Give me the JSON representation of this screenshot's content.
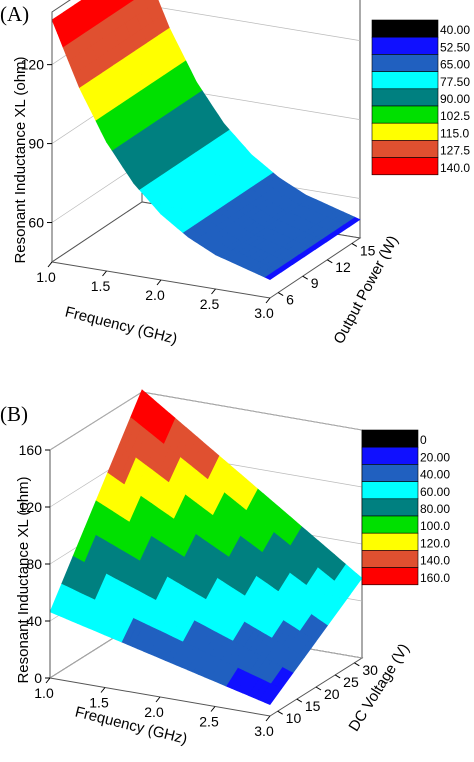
{
  "chart_data": [
    {
      "panel": "(A)",
      "type": "surface3d",
      "x_axis": {
        "label": "Frequency (GHz)",
        "range": [
          1.0,
          3.0
        ],
        "ticks": [
          "1.0",
          "1.5",
          "2.0",
          "2.5",
          "3.0"
        ]
      },
      "y_axis": {
        "label": "Output Power (W)",
        "range": [
          5,
          16
        ],
        "ticks": [
          "6",
          "9",
          "12",
          "15"
        ]
      },
      "z_axis": {
        "label": "Resonant Inductance XL (ohm)",
        "range": [
          45,
          140
        ],
        "ticks": [
          "60",
          "90",
          "120"
        ]
      },
      "surface": {
        "frequency": [
          1.0,
          1.25,
          1.5,
          1.75,
          2.0,
          2.25,
          2.5,
          2.75,
          3.0
        ],
        "xl": [
          137,
          113,
          94,
          80,
          70,
          63,
          58,
          55,
          52
        ]
      },
      "legend": {
        "labels": [
          "40.00",
          "52.50",
          "65.00",
          "77.50",
          "90.00",
          "102.5",
          "115.0",
          "127.5",
          "140.0"
        ],
        "colors": [
          "#000000",
          "#1010ff",
          "#2060c0",
          "#00ffff",
          "#008080",
          "#00e000",
          "#ffff00",
          "#e05030",
          "#ff0000"
        ]
      }
    },
    {
      "panel": "(B)",
      "type": "surface3d",
      "x_axis": {
        "label": "Frequency (GHz)",
        "range": [
          1.0,
          3.0
        ],
        "ticks": [
          "1.0",
          "1.5",
          "2.0",
          "2.5",
          "3.0"
        ]
      },
      "y_axis": {
        "label": "DC Voltage (V)",
        "range": [
          8,
          32
        ],
        "ticks": [
          "10",
          "15",
          "20",
          "25",
          "30"
        ]
      },
      "z_axis": {
        "label": "Resonant Inductance XL (ohm)",
        "range": [
          0,
          160
        ],
        "ticks": [
          "0",
          "40",
          "80",
          "120",
          "160"
        ]
      },
      "surface": {
        "corners": {
          "f1_v10": 56,
          "f3_v10": 12,
          "f1_v30": 152,
          "f3_v30": 52
        }
      },
      "legend": {
        "labels": [
          "0",
          "20.00",
          "40.00",
          "60.00",
          "80.00",
          "100.0",
          "120.0",
          "140.0",
          "160.0"
        ],
        "colors": [
          "#000000",
          "#1010ff",
          "#2060c0",
          "#00ffff",
          "#008080",
          "#00e000",
          "#ffff00",
          "#e05030",
          "#ff0000"
        ]
      }
    }
  ]
}
